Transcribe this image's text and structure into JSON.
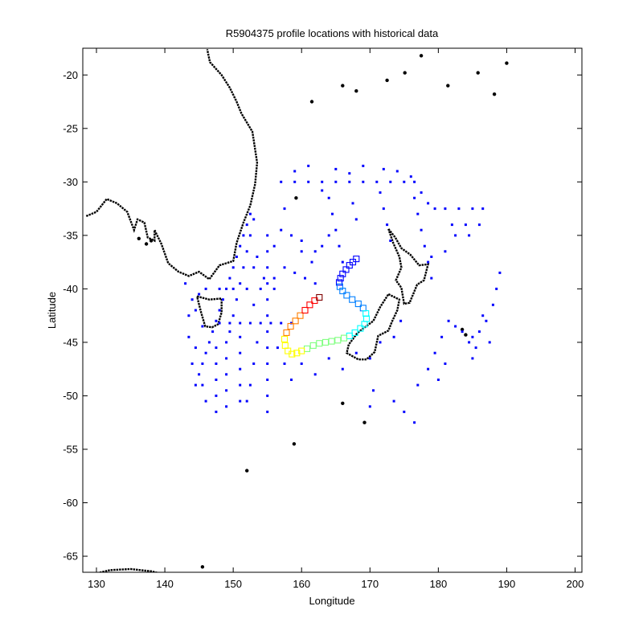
{
  "chart_data": {
    "type": "scatter",
    "title": "R5904375 profile locations with historical data",
    "xlabel": "Longitude",
    "ylabel": "Latitude",
    "xlim": [
      128,
      201
    ],
    "ylim": [
      -66.5,
      -17.5
    ],
    "xticks": [
      130,
      140,
      150,
      160,
      170,
      180,
      190,
      200
    ],
    "yticks": [
      -20,
      -25,
      -30,
      -35,
      -40,
      -45,
      -50,
      -55,
      -60,
      -65
    ],
    "grid": false,
    "legend": "none",
    "colors": {
      "coastline": "#000000",
      "historical": "#0000ff",
      "profile_colormap": [
        "#00007f",
        "#0000ff",
        "#007fff",
        "#00ffff",
        "#7fff7f",
        "#ffff00",
        "#ff7f00",
        "#ff0000",
        "#7f0000"
      ]
    },
    "series": [
      {
        "marker": "dot",
        "color": "#0000ff",
        "points": [
          [
            157.0,
            -30.0
          ],
          [
            159.0,
            -30.0
          ],
          [
            161.0,
            -30.0
          ],
          [
            163.0,
            -30.0
          ],
          [
            165.0,
            -30.0
          ],
          [
            167.0,
            -30.0
          ],
          [
            169.0,
            -30.0
          ],
          [
            171.0,
            -30.0
          ],
          [
            173.0,
            -30.0
          ],
          [
            175.0,
            -30.0
          ],
          [
            176.5,
            -30.0
          ],
          [
            177.5,
            -31.0
          ],
          [
            178.5,
            -32.0
          ],
          [
            179.5,
            -32.5
          ],
          [
            181.0,
            -32.5
          ],
          [
            183.0,
            -32.5
          ],
          [
            185.0,
            -32.5
          ],
          [
            186.5,
            -32.5
          ],
          [
            159.0,
            -29.0
          ],
          [
            161.0,
            -28.5
          ],
          [
            163.0,
            -30.8
          ],
          [
            165.0,
            -28.8
          ],
          [
            167.0,
            -29.2
          ],
          [
            169.0,
            -28.5
          ],
          [
            172.0,
            -28.8
          ],
          [
            174.0,
            -29.0
          ],
          [
            176.0,
            -29.5
          ],
          [
            182.0,
            -34.0
          ],
          [
            184.0,
            -34.0
          ],
          [
            186.0,
            -34.0
          ],
          [
            182.5,
            -35.0
          ],
          [
            184.5,
            -35.0
          ],
          [
            179.0,
            -37.0
          ],
          [
            181.0,
            -36.5
          ],
          [
            164.0,
            -31.5
          ],
          [
            164.5,
            -33.0
          ],
          [
            165.0,
            -34.5
          ],
          [
            165.5,
            -36.0
          ],
          [
            166.0,
            -37.5
          ],
          [
            167.5,
            -32.0
          ],
          [
            168.0,
            -33.5
          ],
          [
            171.5,
            -31.0
          ],
          [
            172.0,
            -32.5
          ],
          [
            172.5,
            -34.0
          ],
          [
            173.0,
            -35.5
          ],
          [
            176.5,
            -31.5
          ],
          [
            177.0,
            -33.0
          ],
          [
            177.5,
            -34.5
          ],
          [
            178.0,
            -36.0
          ],
          [
            178.5,
            -37.5
          ],
          [
            179.0,
            -39.0
          ],
          [
            152.5,
            -33.0
          ],
          [
            152.0,
            -34.0
          ],
          [
            151.5,
            -35.0
          ],
          [
            151.0,
            -36.0
          ],
          [
            150.5,
            -37.0
          ],
          [
            150.0,
            -38.0
          ],
          [
            149.5,
            -39.0
          ],
          [
            149.0,
            -40.0
          ],
          [
            148.5,
            -41.0
          ],
          [
            148.0,
            -42.0
          ],
          [
            147.5,
            -43.0
          ],
          [
            147.0,
            -44.0
          ],
          [
            146.5,
            -45.0
          ],
          [
            146.0,
            -46.0
          ],
          [
            145.5,
            -47.0
          ],
          [
            145.0,
            -48.0
          ],
          [
            144.5,
            -49.0
          ],
          [
            153.0,
            -33.5
          ],
          [
            152.5,
            -35.0
          ],
          [
            152.0,
            -36.5
          ],
          [
            151.5,
            -38.0
          ],
          [
            151.0,
            -39.5
          ],
          [
            150.5,
            -41.0
          ],
          [
            150.0,
            -42.5
          ],
          [
            149.5,
            -44.0
          ],
          [
            155.0,
            -35.0
          ],
          [
            155.0,
            -36.5
          ],
          [
            155.0,
            -38.0
          ],
          [
            155.0,
            -39.5
          ],
          [
            155.0,
            -41.0
          ],
          [
            155.0,
            -42.5
          ],
          [
            155.0,
            -44.0
          ],
          [
            155.0,
            -45.5
          ],
          [
            155.0,
            -47.0
          ],
          [
            155.0,
            -48.5
          ],
          [
            155.0,
            -50.0
          ],
          [
            155.0,
            -51.5
          ],
          [
            148.0,
            -43.2
          ],
          [
            149.5,
            -43.2
          ],
          [
            151.0,
            -43.2
          ],
          [
            152.5,
            -43.2
          ],
          [
            154.0,
            -43.2
          ],
          [
            155.5,
            -43.2
          ],
          [
            157.0,
            -43.2
          ],
          [
            158.5,
            -43.2
          ],
          [
            146.0,
            -40.0
          ],
          [
            148.0,
            -40.0
          ],
          [
            150.0,
            -40.0
          ],
          [
            152.0,
            -40.0
          ],
          [
            154.0,
            -40.0
          ],
          [
            156.0,
            -40.0
          ],
          [
            153.0,
            -38.0
          ],
          [
            154.5,
            -39.0
          ],
          [
            156.0,
            -39.0
          ],
          [
            157.5,
            -38.0
          ],
          [
            159.0,
            -38.5
          ],
          [
            160.5,
            -39.0
          ],
          [
            162.0,
            -39.5
          ],
          [
            153.5,
            -37.0
          ],
          [
            153.0,
            -41.5
          ],
          [
            153.5,
            -45.0
          ],
          [
            153.0,
            -47.0
          ],
          [
            152.5,
            -49.0
          ],
          [
            152.0,
            -50.5
          ],
          [
            151.0,
            -44.5
          ],
          [
            151.0,
            -46.0
          ],
          [
            151.0,
            -47.5
          ],
          [
            151.0,
            -49.0
          ],
          [
            151.0,
            -50.5
          ],
          [
            149.0,
            -45.0
          ],
          [
            149.0,
            -46.5
          ],
          [
            149.0,
            -48.0
          ],
          [
            149.0,
            -49.5
          ],
          [
            149.0,
            -51.0
          ],
          [
            147.5,
            -45.5
          ],
          [
            147.5,
            -47.0
          ],
          [
            147.5,
            -48.5
          ],
          [
            147.5,
            -50.0
          ],
          [
            147.5,
            -51.5
          ],
          [
            145.0,
            -40.5
          ],
          [
            144.5,
            -42.0
          ],
          [
            145.5,
            -43.5
          ],
          [
            144.5,
            -45.5
          ],
          [
            144.0,
            -47.0
          ],
          [
            145.5,
            -49.0
          ],
          [
            146.0,
            -50.5
          ],
          [
            143.5,
            -42.5
          ],
          [
            143.5,
            -44.5
          ],
          [
            143.0,
            -39.5
          ],
          [
            144.0,
            -41.0
          ],
          [
            157.0,
            -34.5
          ],
          [
            156.0,
            -36.0
          ],
          [
            157.5,
            -32.5
          ],
          [
            158.5,
            -35.0
          ],
          [
            160.0,
            -36.5
          ],
          [
            161.5,
            -37.5
          ],
          [
            156.5,
            -45.5
          ],
          [
            157.5,
            -47.0
          ],
          [
            158.5,
            -48.5
          ],
          [
            160.0,
            -47.0
          ],
          [
            162.0,
            -48.0
          ],
          [
            164.0,
            -46.5
          ],
          [
            166.0,
            -47.5
          ],
          [
            168.0,
            -46.0
          ],
          [
            170.0,
            -46.5
          ],
          [
            171.5,
            -45.0
          ],
          [
            173.5,
            -44.5
          ],
          [
            174.5,
            -43.0
          ],
          [
            170.5,
            -49.5
          ],
          [
            170.0,
            -51.0
          ],
          [
            173.5,
            -50.5
          ],
          [
            175.0,
            -51.5
          ],
          [
            176.5,
            -52.5
          ],
          [
            177.0,
            -49.0
          ],
          [
            178.5,
            -47.5
          ],
          [
            179.5,
            -46.0
          ],
          [
            180.5,
            -44.5
          ],
          [
            181.5,
            -43.0
          ],
          [
            185.0,
            -44.5
          ],
          [
            185.5,
            -45.5
          ],
          [
            186.0,
            -44.0
          ],
          [
            187.0,
            -43.0
          ],
          [
            188.0,
            -41.5
          ],
          [
            188.5,
            -40.0
          ],
          [
            189.0,
            -38.5
          ],
          [
            186.5,
            -42.5
          ],
          [
            187.5,
            -45.0
          ],
          [
            182.5,
            -43.5
          ],
          [
            183.5,
            -44.0
          ],
          [
            184.5,
            -45.0
          ],
          [
            185.0,
            -46.5
          ],
          [
            181.0,
            -47.0
          ],
          [
            180.0,
            -48.5
          ],
          [
            163.0,
            -36.0
          ],
          [
            164.0,
            -35.0
          ],
          [
            162.0,
            -36.5
          ],
          [
            160.0,
            -35.5
          ]
        ]
      },
      {
        "marker": "square",
        "colormap": true,
        "points": [
          [
            168.0,
            -37.2
          ],
          [
            167.5,
            -37.5
          ],
          [
            167.0,
            -37.8
          ],
          [
            166.5,
            -38.2
          ],
          [
            166.0,
            -38.6
          ],
          [
            165.7,
            -39.0
          ],
          [
            165.5,
            -39.4
          ],
          [
            165.6,
            -39.8
          ],
          [
            166.0,
            -40.2
          ],
          [
            166.6,
            -40.6
          ],
          [
            167.4,
            -41.0
          ],
          [
            168.3,
            -41.4
          ],
          [
            169.0,
            -41.8
          ],
          [
            169.4,
            -42.3
          ],
          [
            169.5,
            -42.8
          ],
          [
            169.2,
            -43.3
          ],
          [
            168.6,
            -43.7
          ],
          [
            167.8,
            -44.1
          ],
          [
            167.0,
            -44.4
          ],
          [
            166.2,
            -44.6
          ],
          [
            165.3,
            -44.8
          ],
          [
            164.4,
            -44.9
          ],
          [
            163.5,
            -45.0
          ],
          [
            162.6,
            -45.1
          ],
          [
            161.7,
            -45.3
          ],
          [
            160.8,
            -45.6
          ],
          [
            160.0,
            -45.8
          ],
          [
            159.3,
            -46.0
          ],
          [
            158.6,
            -46.1
          ],
          [
            158.0,
            -45.8
          ],
          [
            157.6,
            -45.3
          ],
          [
            157.5,
            -44.7
          ],
          [
            157.8,
            -44.1
          ],
          [
            158.4,
            -43.5
          ],
          [
            159.1,
            -43.0
          ],
          [
            159.8,
            -42.5
          ],
          [
            160.5,
            -42.0
          ],
          [
            161.2,
            -41.5
          ],
          [
            161.9,
            -41.1
          ],
          [
            162.6,
            -40.8
          ]
        ],
        "values": [
          0.1,
          0.11,
          0.12,
          0.13,
          0.15,
          0.16,
          0.18,
          0.2,
          0.22,
          0.24,
          0.26,
          0.28,
          0.3,
          0.32,
          0.34,
          0.36,
          0.38,
          0.4,
          0.42,
          0.44,
          0.46,
          0.48,
          0.5,
          0.52,
          0.54,
          0.56,
          0.58,
          0.6,
          0.62,
          0.64,
          0.66,
          0.68,
          0.7,
          0.72,
          0.75,
          0.78,
          0.82,
          0.86,
          0.9,
          0.95
        ]
      }
    ]
  }
}
